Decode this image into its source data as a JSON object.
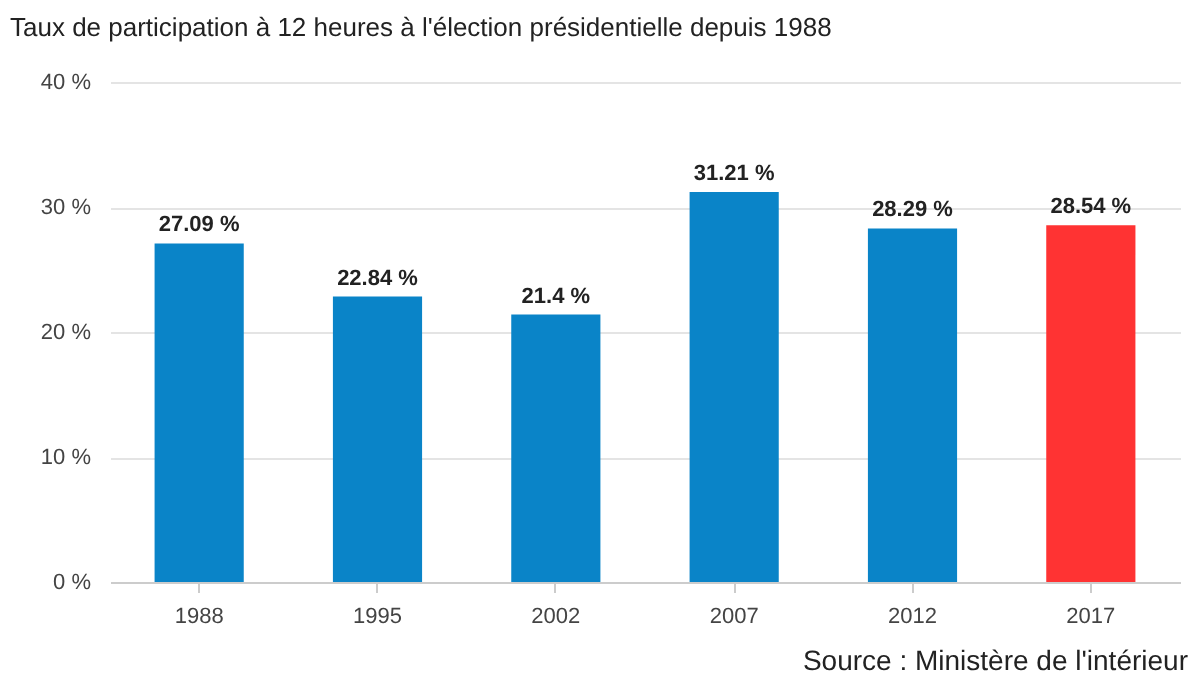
{
  "chart_data": {
    "type": "bar",
    "title": "Taux de participation à 12 heures à l'élection présidentielle depuis 1988",
    "categories": [
      "1988",
      "1995",
      "2002",
      "2007",
      "2012",
      "2017"
    ],
    "values": [
      27.09,
      22.84,
      21.4,
      31.21,
      28.29,
      28.54
    ],
    "value_labels": [
      "27.09 %",
      "22.84 %",
      "21.4 %",
      "31.21 %",
      "28.29 %",
      "28.54 %"
    ],
    "colors": [
      "#0a84c8",
      "#0a84c8",
      "#0a84c8",
      "#0a84c8",
      "#0a84c8",
      "#ff3333"
    ],
    "ylim": [
      0,
      40
    ],
    "yticks": [
      {
        "value": 0,
        "label": "0 %"
      },
      {
        "value": 10,
        "label": "10 %"
      },
      {
        "value": 20,
        "label": "20 %"
      },
      {
        "value": 30,
        "label": "30 %"
      },
      {
        "value": 40,
        "label": "40 %"
      }
    ],
    "grid": "y",
    "annotations": [
      "Source : Ministère de l'intérieur"
    ]
  }
}
